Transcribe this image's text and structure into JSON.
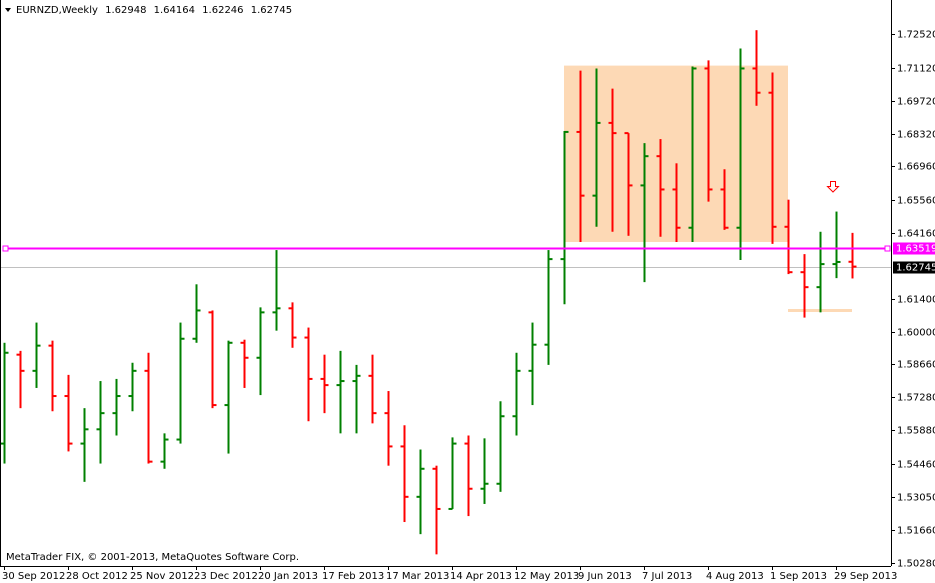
{
  "chart_data": {
    "type": "ohlc",
    "symbol": "EURNZD,Weekly",
    "footer": "MetaTrader FIX, © 2001-2013, MetaQuotes Software Corp.",
    "categories": [
      "30 Sep 2012",
      null,
      null,
      null,
      "28 Oct 2012",
      null,
      null,
      null,
      "25 Nov 2012",
      null,
      null,
      null,
      "23 Dec 2012",
      null,
      null,
      null,
      "20 Jan 2013",
      null,
      null,
      null,
      "17 Feb 2013",
      null,
      null,
      null,
      "17 Mar 2013",
      null,
      null,
      null,
      "14 Apr 2013",
      null,
      null,
      null,
      "12 May 2013",
      null,
      null,
      null,
      "9 Jun 2013",
      null,
      null,
      null,
      "7 Jul 2013",
      null,
      null,
      null,
      "4 Aug 2013",
      null,
      null,
      null,
      "1 Sep 2013",
      null,
      null,
      null,
      "29 Sep 2013",
      null
    ],
    "open": [
      1.553,
      1.5904,
      1.5836,
      1.5942,
      1.573,
      1.553,
      1.559,
      1.5658,
      1.573,
      1.5836,
      1.5454,
      1.5547,
      1.5971,
      1.6082,
      1.5692,
      1.5954,
      1.5891,
      1.6082,
      1.6099,
      1.5976,
      1.5802,
      1.5776,
      1.5793,
      1.5815,
      1.5658,
      1.5518,
      1.5306,
      1.5424,
      1.5255,
      1.553,
      1.534,
      1.5361,
      1.5645,
      1.5836,
      1.5946,
      1.6306,
      1.6841,
      1.6573,
      1.6879,
      1.6836,
      1.6616,
      1.6739,
      1.6599,
      1.6438,
      1.7108,
      1.6599,
      1.6438,
      1.7108,
      1.7006,
      1.6442,
      1.6251,
      1.6188,
      1.6285,
      1.62948
    ],
    "high": [
      1.5954,
      1.592,
      1.6039,
      1.5963,
      1.5819,
      1.5679,
      1.5793,
      1.5802,
      1.587,
      1.5912,
      1.5573,
      1.6039,
      1.62,
      1.609,
      1.5963,
      1.5967,
      1.6103,
      1.6344,
      1.6124,
      1.6018,
      1.5904,
      1.592,
      1.5861,
      1.5904,
      1.5751,
      1.5607,
      1.5505,
      1.5437,
      1.5556,
      1.5564,
      1.5552,
      1.5708,
      1.5912,
      1.6039,
      1.6344,
      1.6845,
      1.7099,
      1.7108,
      1.7023,
      1.6836,
      1.6794,
      1.6811,
      1.6709,
      1.7116,
      1.7142,
      1.6684,
      1.7192,
      1.7269,
      1.7091,
      1.6556,
      1.6327,
      1.6421,
      1.6506,
      1.64164
    ],
    "low": [
      1.5446,
      1.5679,
      1.5764,
      1.5666,
      1.5497,
      1.5369,
      1.5446,
      1.5564,
      1.5666,
      1.5446,
      1.5424,
      1.553,
      1.5954,
      1.5679,
      1.5488,
      1.5764,
      1.5734,
      1.6005,
      1.5933,
      1.5624,
      1.5658,
      1.5573,
      1.5573,
      1.5615,
      1.5437,
      1.52,
      1.5149,
      1.5064,
      1.5255,
      1.5225,
      1.5276,
      1.5327,
      1.5564,
      1.5692,
      1.5861,
      1.6116,
      1.6378,
      1.6442,
      1.6421,
      1.6404,
      1.6209,
      1.64,
      1.6378,
      1.6378,
      1.6548,
      1.6429,
      1.6302,
      1.6951,
      1.637,
      1.6243,
      1.606,
      1.6082,
      1.6226,
      1.62246
    ],
    "close": [
      1.5912,
      1.5836,
      1.5942,
      1.573,
      1.553,
      1.559,
      1.5658,
      1.573,
      1.5836,
      1.5454,
      1.5547,
      1.5971,
      1.609,
      1.5692,
      1.5954,
      1.5891,
      1.6082,
      1.6099,
      1.5976,
      1.5802,
      1.5776,
      1.5793,
      1.5815,
      1.5658,
      1.5518,
      1.5306,
      1.5424,
      1.5255,
      1.553,
      1.534,
      1.5361,
      1.5645,
      1.5836,
      1.5946,
      1.6306,
      1.6841,
      1.6573,
      1.6879,
      1.6836,
      1.6616,
      1.6739,
      1.6599,
      1.6438,
      1.7108,
      1.6599,
      1.6438,
      1.7108,
      1.7006,
      1.6442,
      1.6251,
      1.6188,
      1.6285,
      1.6294,
      1.62745
    ],
    "up_color": "#008000",
    "down_color": "#ff0000",
    "ylim": [
      1.5015,
      1.7396
    ],
    "yticks": [
      {
        "value": 1.7252,
        "label": "1.72520"
      },
      {
        "value": 1.7112,
        "label": "1.71120"
      },
      {
        "value": 1.6972,
        "label": "1.69720"
      },
      {
        "value": 1.6832,
        "label": "1.68320"
      },
      {
        "value": 1.6696,
        "label": "1.66960"
      },
      {
        "value": 1.6556,
        "label": "1.65560"
      },
      {
        "value": 1.6416,
        "label": "1.64160"
      },
      {
        "value": 1.614,
        "label": "1.61400"
      },
      {
        "value": 1.6,
        "label": "1.60000"
      },
      {
        "value": 1.5866,
        "label": "1.58660"
      },
      {
        "value": 1.5728,
        "label": "1.57280"
      },
      {
        "value": 1.5588,
        "label": "1.55880"
      },
      {
        "value": 1.5446,
        "label": "1.54460"
      },
      {
        "value": 1.5305,
        "label": "1.53050"
      },
      {
        "value": 1.5166,
        "label": "1.51660"
      },
      {
        "value": 1.5028,
        "label": "1.50280"
      }
    ],
    "level": {
      "value": 1.63519,
      "color": "#ff00ff"
    },
    "rectangle": {
      "start": 35,
      "end": 49,
      "top": 1.712,
      "bottom": 1.6378,
      "color": "#fdd9b5"
    },
    "segment": {
      "start": 49,
      "end": 53,
      "value": 1.609,
      "color": "#fdd9b5"
    }
  }
}
